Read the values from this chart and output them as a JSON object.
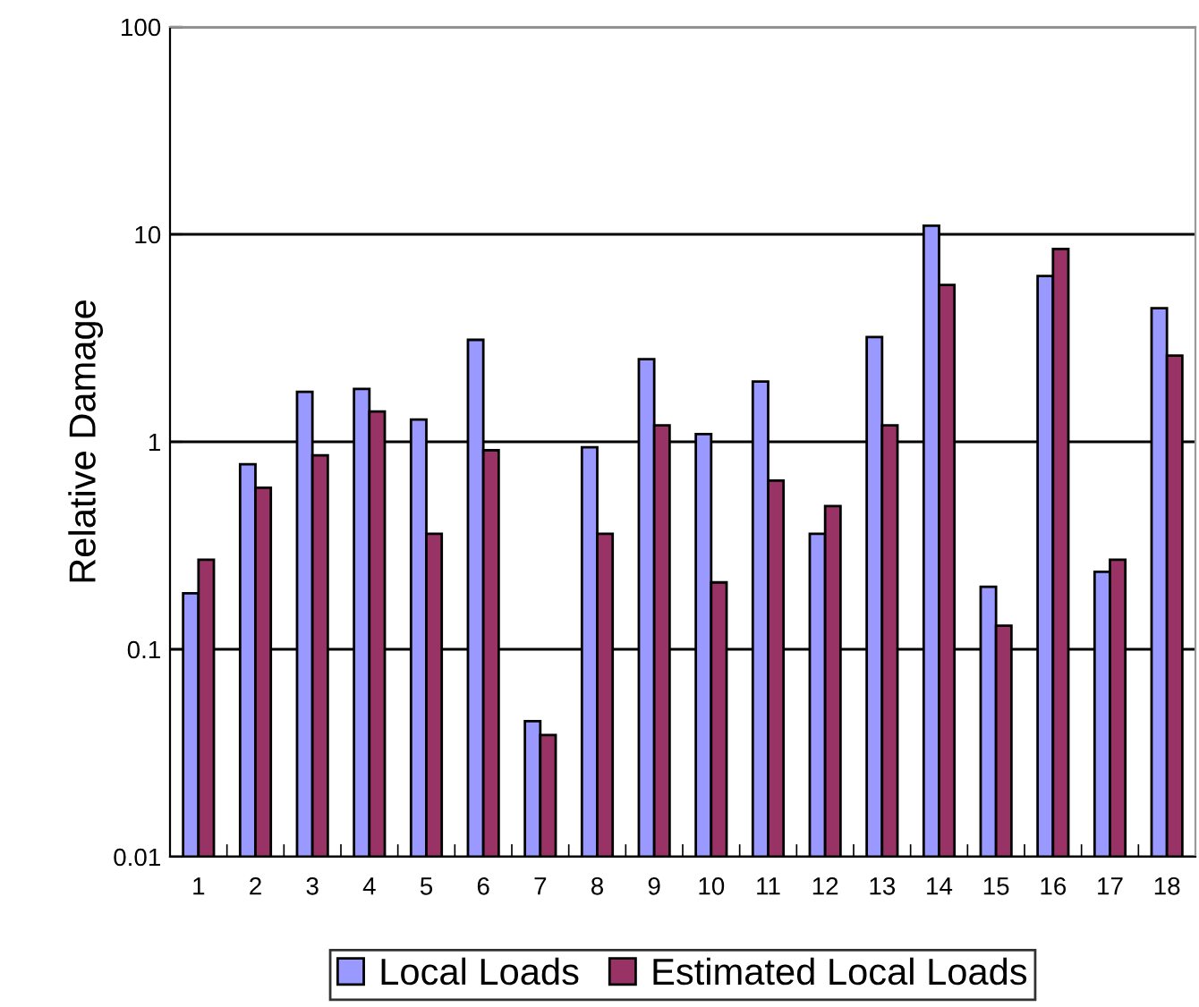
{
  "chart_data": {
    "type": "bar",
    "ylabel": "Relative Damage",
    "log": "y",
    "grid": "y",
    "legend": "bottom",
    "categories": [
      "1",
      "2",
      "3",
      "4",
      "5",
      "6",
      "7",
      "8",
      "9",
      "10",
      "11",
      "12",
      "13",
      "14",
      "15",
      "16",
      "17",
      "18"
    ],
    "ylim": [
      0.01,
      100
    ],
    "yticks": [
      0.01,
      0.1,
      1,
      10,
      100
    ],
    "series": [
      {
        "name": "Local Loads",
        "color": "#9999ff",
        "values": [
          0.186,
          0.78,
          1.74,
          1.8,
          1.28,
          3.1,
          0.045,
          0.94,
          2.5,
          1.09,
          1.95,
          0.36,
          3.2,
          11,
          0.2,
          6.3,
          0.236,
          4.4
        ]
      },
      {
        "name": "Estimated Local Loads",
        "color": "#993366",
        "values": [
          0.27,
          0.6,
          0.86,
          1.4,
          0.36,
          0.91,
          0.0386,
          0.36,
          1.2,
          0.21,
          0.65,
          0.49,
          1.2,
          5.7,
          0.13,
          8.5,
          0.27,
          2.6
        ]
      }
    ]
  }
}
